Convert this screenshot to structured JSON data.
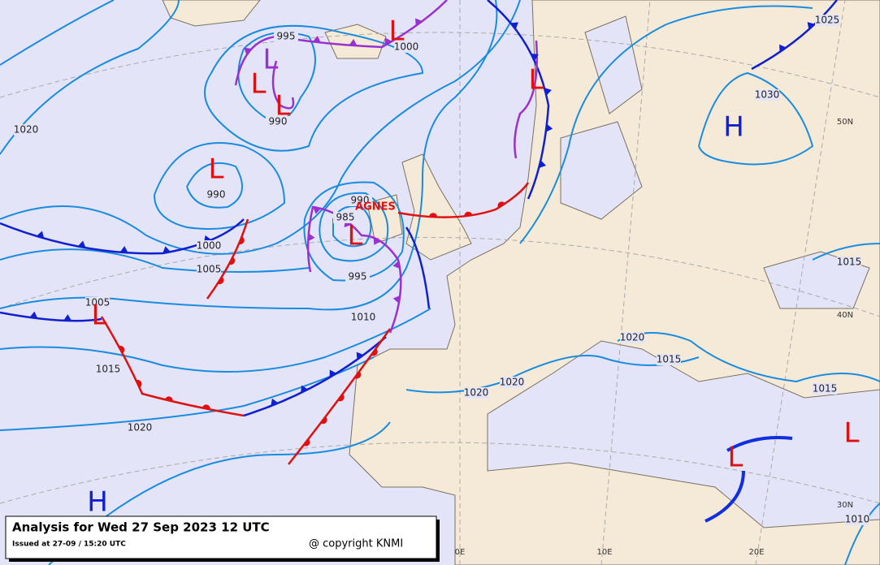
{
  "title": "Analysis for Wed 27 Sep 2023 12 UTC",
  "issued": "Issued at 27-09 / 15:20 UTC",
  "copyright": "@ copyright KNMI",
  "storm_name": "AGNES",
  "isobar_labels": [
    "995",
    "1000",
    "990",
    "990",
    "1020",
    "1000",
    "1005",
    "1005",
    "1015",
    "1020",
    "990",
    "985",
    "995",
    "1010",
    "1020",
    "1020",
    "1025",
    "1030",
    "1020",
    "1015",
    "1015",
    "1015",
    "1010"
  ],
  "centers": [
    "L",
    "L",
    "L",
    "L",
    "L",
    "L",
    "L",
    "L",
    "L",
    "L",
    "H",
    "H"
  ],
  "graticule_labels": [
    "50N",
    "40N",
    "30N",
    "0E",
    "10E",
    "20E"
  ]
}
